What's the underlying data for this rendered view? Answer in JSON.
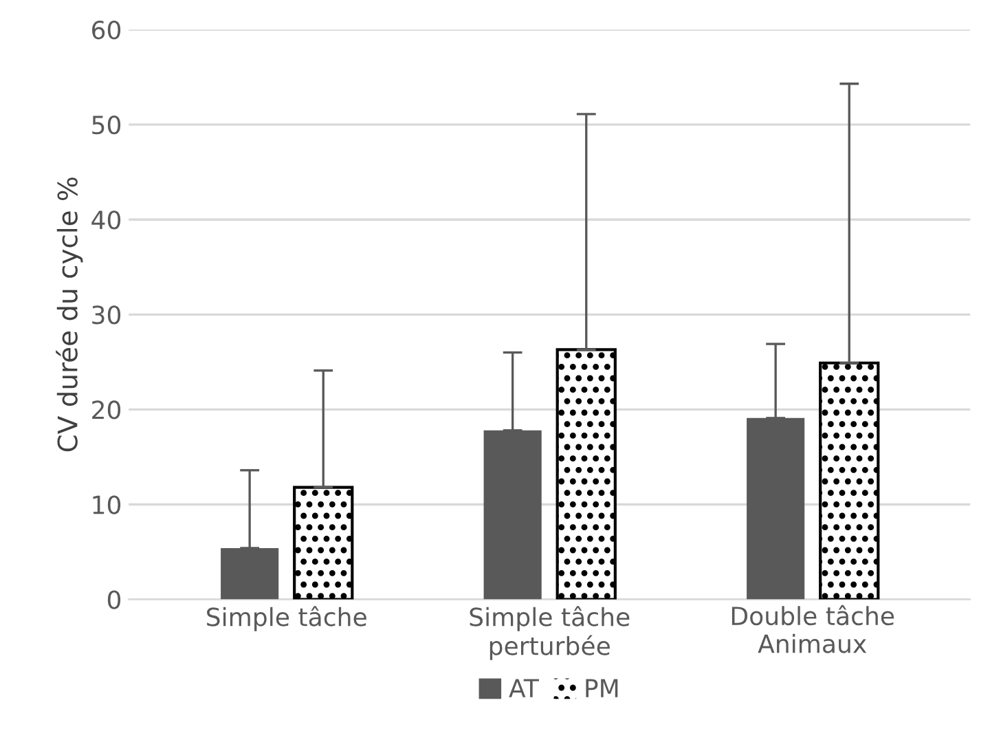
{
  "chart_data": {
    "type": "bar",
    "ylabel": "CV durée du cycle %",
    "categories": [
      "Simple tâche",
      "Simple tâche\nperturbée",
      "Double tâche\nAnimaux"
    ],
    "series": [
      {
        "name": "AT",
        "color": "#595959",
        "values": [
          5.4,
          17.8,
          19.1
        ],
        "errors": [
          [
            5.4,
            13.6
          ],
          [
            17.8,
            26.0
          ],
          [
            19.1,
            26.9
          ]
        ]
      },
      {
        "name": "PM",
        "color": "#ffffff",
        "values": [
          11.8,
          26.3,
          24.9
        ],
        "errors": [
          [
            11.8,
            24.1
          ],
          [
            26.3,
            51.1
          ],
          [
            24.9,
            54.3
          ]
        ]
      }
    ],
    "ylim": [
      0,
      60
    ],
    "yticks": [
      0,
      10,
      20,
      30,
      40,
      50,
      60
    ],
    "grid": "y",
    "legend": "bottom"
  }
}
